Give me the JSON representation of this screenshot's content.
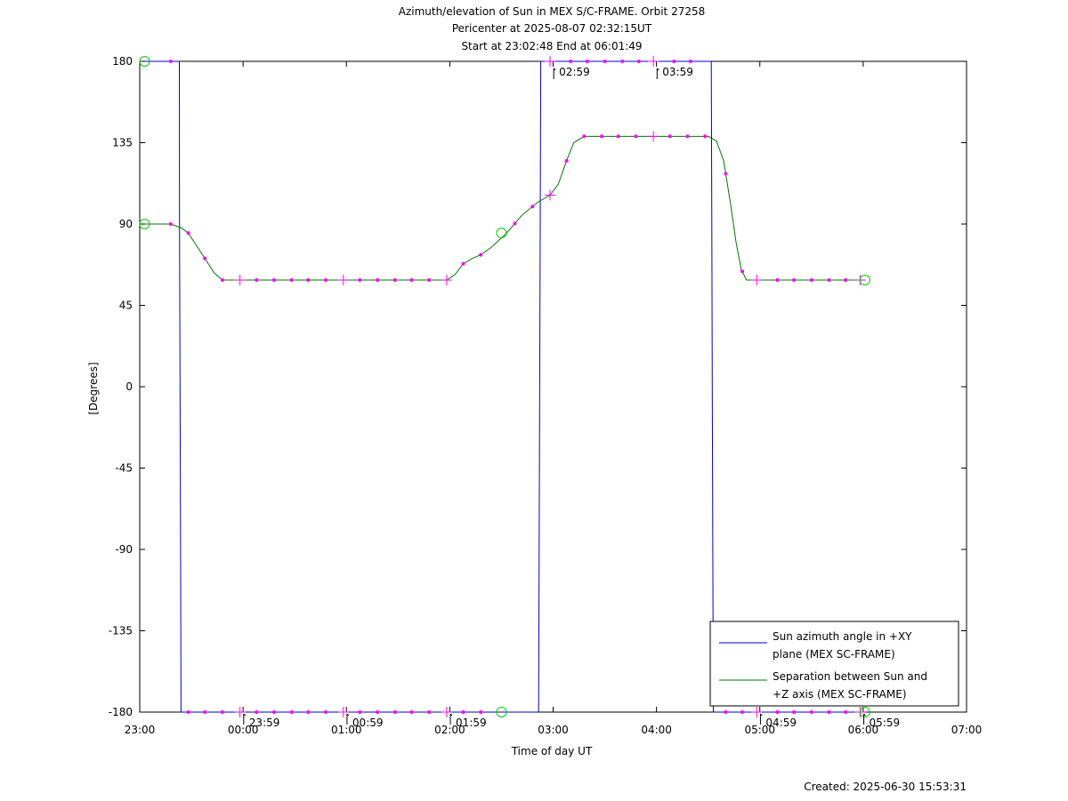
{
  "chart_data": {
    "type": "line",
    "title": [
      "Azimuth/elevation of Sun in MEX S/C-FRAME.  Orbit 27258",
      "Pericenter at 2025-08-07 02:32:15UT",
      "Start at 23:02:48 End at 06:01:49"
    ],
    "xlabel": "Time of day UT",
    "ylabel": "[Degrees]",
    "footer": "Created: 2025-06-30 15:53:31",
    "xlim": [
      0,
      8
    ],
    "ylim": [
      -180,
      180
    ],
    "x_unit": "hours after 23:00 UT",
    "x_ticks": [
      {
        "x": 0,
        "label": "23:00"
      },
      {
        "x": 1,
        "label": "00:00"
      },
      {
        "x": 2,
        "label": "01:00"
      },
      {
        "x": 3,
        "label": "02:00"
      },
      {
        "x": 4,
        "label": "03:00"
      },
      {
        "x": 5,
        "label": "04:00"
      },
      {
        "x": 6,
        "label": "05:00"
      },
      {
        "x": 7,
        "label": "06:00"
      },
      {
        "x": 8,
        "label": "07:00"
      }
    ],
    "y_ticks": [
      180,
      135,
      90,
      45,
      0,
      -45,
      -90,
      -135,
      -180
    ],
    "legend_position": "bottom-right",
    "colors": {
      "azimuth": "#0000cc",
      "separation": "#007700",
      "markers": "#ff00ff",
      "endpoints": "#00cc00"
    },
    "time_annotations": [
      {
        "x": 0.98,
        "y": -180,
        "label": "23:59"
      },
      {
        "x": 1.98,
        "y": -180,
        "label": "00:59"
      },
      {
        "x": 2.98,
        "y": -180,
        "label": "01:59"
      },
      {
        "x": 3.98,
        "y": 180,
        "label": "02:59"
      },
      {
        "x": 4.98,
        "y": 180,
        "label": "03:59"
      },
      {
        "x": 5.98,
        "y": -180,
        "label": "04:59"
      },
      {
        "x": 6.98,
        "y": -180,
        "label": "05:59"
      }
    ],
    "series": [
      {
        "name": "Sun azimuth angle in +XY plane (MEX SC-FRAME)",
        "legend_lines": [
          "Sun azimuth angle in +XY",
          "plane (MEX SC-FRAME)"
        ],
        "points": [
          [
            0.047,
            180
          ],
          [
            0.383,
            180
          ],
          [
            0.385,
            90
          ],
          [
            0.39,
            0
          ],
          [
            0.395,
            -90
          ],
          [
            0.4,
            -180
          ],
          [
            3.86,
            -180
          ],
          [
            3.865,
            -90
          ],
          [
            3.87,
            0
          ],
          [
            3.875,
            90
          ],
          [
            3.88,
            180
          ],
          [
            5.53,
            180
          ],
          [
            5.535,
            90
          ],
          [
            5.54,
            0
          ],
          [
            5.545,
            -90
          ],
          [
            5.55,
            -180
          ],
          [
            7.017,
            -180
          ]
        ],
        "markers": [
          0.3,
          0.47,
          0.63,
          0.8,
          1.13,
          1.3,
          1.47,
          1.63,
          1.8,
          2.13,
          2.3,
          2.47,
          2.63,
          2.8,
          3.13,
          3.3,
          4.17,
          4.33,
          4.5,
          4.67,
          4.83,
          5.17,
          5.33,
          5.67,
          5.83,
          6.17,
          6.33,
          6.5,
          6.67,
          6.83
        ],
        "crosses": [
          0.97,
          1.97,
          2.97,
          3.97,
          4.97,
          5.97,
          6.97
        ]
      },
      {
        "name": "Separation between Sun and +Z axis (MEX SC-FRAME)",
        "legend_lines": [
          "Separation between Sun and",
          "+Z axis (MEX SC-FRAME)"
        ],
        "points": [
          [
            0.047,
            90
          ],
          [
            0.3,
            90
          ],
          [
            0.4,
            88
          ],
          [
            0.47,
            85
          ],
          [
            0.55,
            78
          ],
          [
            0.63,
            71
          ],
          [
            0.72,
            63
          ],
          [
            0.8,
            59
          ],
          [
            0.97,
            59
          ],
          [
            2.97,
            59
          ],
          [
            3.05,
            62
          ],
          [
            3.13,
            68
          ],
          [
            3.22,
            71
          ],
          [
            3.3,
            73
          ],
          [
            3.4,
            77
          ],
          [
            3.55,
            85
          ],
          [
            3.7,
            95
          ],
          [
            3.85,
            102
          ],
          [
            3.97,
            106
          ],
          [
            4.05,
            112
          ],
          [
            4.13,
            125
          ],
          [
            4.2,
            135
          ],
          [
            4.3,
            138.5
          ],
          [
            5.5,
            138.5
          ],
          [
            5.58,
            136
          ],
          [
            5.65,
            125
          ],
          [
            5.72,
            100
          ],
          [
            5.77,
            80
          ],
          [
            5.82,
            65
          ],
          [
            5.87,
            59
          ],
          [
            7.017,
            59
          ]
        ],
        "markers": [
          0.3,
          0.47,
          0.63,
          0.8,
          1.13,
          1.3,
          1.47,
          1.63,
          1.8,
          2.13,
          2.3,
          2.47,
          2.63,
          2.8,
          3.13,
          3.3,
          3.63,
          3.8,
          4.13,
          4.3,
          4.47,
          4.63,
          4.8,
          5.13,
          5.3,
          5.47,
          5.67,
          5.83,
          6.17,
          6.33,
          6.5,
          6.67,
          6.83
        ],
        "crosses": [
          0.97,
          1.97,
          2.97,
          3.97,
          4.97,
          5.97,
          6.97
        ]
      }
    ],
    "endpoint_circles": [
      {
        "x": 0.047,
        "y": 180
      },
      {
        "x": 0.047,
        "y": 90
      },
      {
        "x": 3.5,
        "y": 85
      },
      {
        "x": 3.5,
        "y": -180
      },
      {
        "x": 7.017,
        "y": 59
      },
      {
        "x": 7.017,
        "y": -180
      }
    ]
  }
}
